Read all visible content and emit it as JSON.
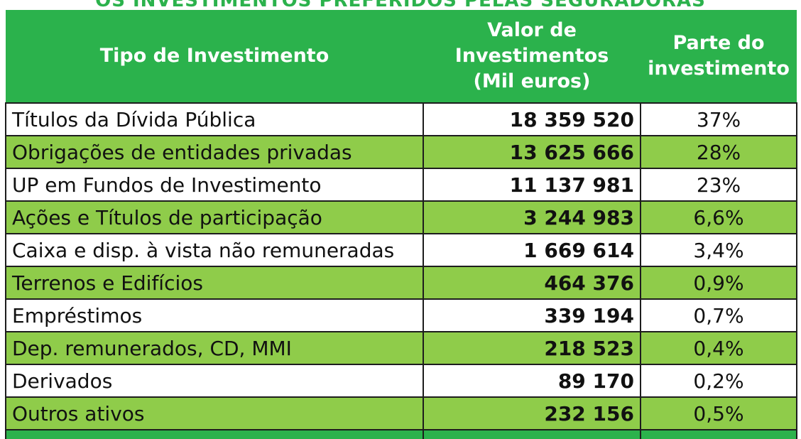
{
  "title": "OS INVESTIMENTOS PREFERIDOS PELAS SEGURADORAS",
  "colors": {
    "header_green": "#2bb24c",
    "row_green": "#8fcc4a",
    "row_white": "#ffffff"
  },
  "chart_data": {
    "type": "table",
    "title": "OS INVESTIMENTOS PREFERIDOS PELAS SEGURADORAS",
    "columns": [
      "Tipo de Investimento",
      "Valor de Investimentos (Mil euros)",
      "Parte do investimento"
    ],
    "rows": [
      {
        "name": "Títulos da Dívida Pública",
        "value": "18 359 520",
        "share": "37%"
      },
      {
        "name": "Obrigações de entidades privadas",
        "value": "13 625 666",
        "share": "28%"
      },
      {
        "name": "UP em Fundos de Investimento",
        "value": "11 137 981",
        "share": "23%"
      },
      {
        "name": "Ações e Títulos de participação",
        "value": "3 244 983",
        "share": "6,6%"
      },
      {
        "name": "Caixa e disp. à vista não remuneradas",
        "value": "1 669 614",
        "share": "3,4%"
      },
      {
        "name": "Terrenos e Edifícios",
        "value": "464 376",
        "share": "0,9%"
      },
      {
        "name": "Empréstimos",
        "value": "339 194",
        "share": "0,7%"
      },
      {
        "name": "Dep. remunerados, CD, MMI",
        "value": "218 523",
        "share": "0,4%"
      },
      {
        "name": "Derivados",
        "value": "89 170",
        "share": "0,2%"
      },
      {
        "name": "Outros ativos",
        "value": "232 156",
        "share": "0,5%"
      }
    ]
  },
  "header": {
    "col1": "Tipo de Investimento",
    "col2_line1": "Valor de",
    "col2_line2": "Investimentos",
    "col2_line3": "(Mil euros)",
    "col3_line1": "Parte do",
    "col3_line2": "investimento"
  }
}
